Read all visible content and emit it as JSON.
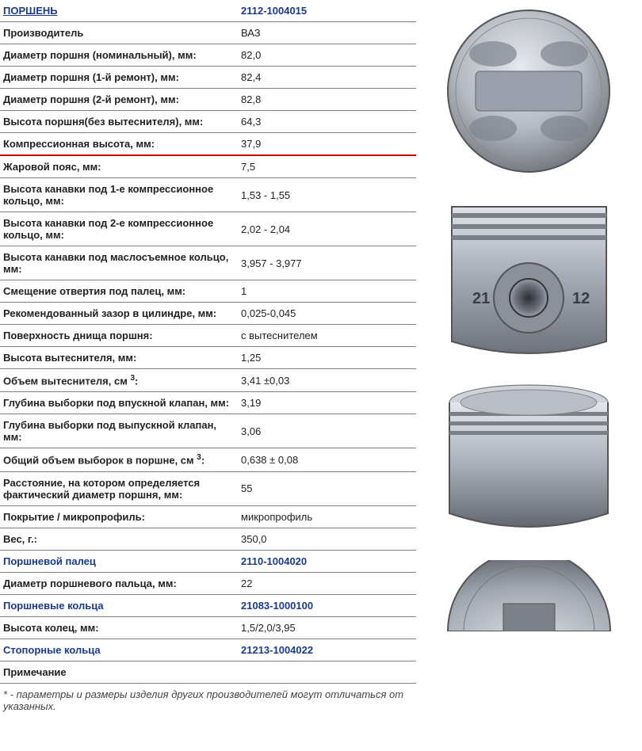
{
  "header": {
    "label": "ПОРШЕНЬ",
    "value": "2112-1004015"
  },
  "rows": [
    {
      "label": "Производитель",
      "value": "ВАЗ",
      "link": false
    },
    {
      "label": "Диаметр поршня (номинальный), мм:",
      "value": "82,0",
      "link": false
    },
    {
      "label": "Диаметр поршня (1-й ремонт), мм:",
      "value": "82,4",
      "link": false
    },
    {
      "label": "Диаметр поршня (2-й ремонт), мм:",
      "value": "82,8",
      "link": false
    },
    {
      "label": "Высота поршня(без вытеснителя), мм:",
      "value": "64,3",
      "link": false
    },
    {
      "label": "Компрессионная высота, мм:",
      "value": "37,9",
      "link": false,
      "redline": true
    },
    {
      "label": "Жаровой пояс, мм:",
      "value": "7,5",
      "link": false
    },
    {
      "label": "Высота канавки под 1-е компрессионное кольцо, мм:",
      "value": "1,53 - 1,55",
      "link": false
    },
    {
      "label": "Высота канавки под 2-е компрессионное кольцо, мм:",
      "value": "2,02 - 2,04",
      "link": false
    },
    {
      "label": "Высота канавки под маслосъемное кольцо, мм:",
      "value": "3,957 - 3,977",
      "link": false
    },
    {
      "label": "Смещение отвертия под палец, мм:",
      "value": "1",
      "link": false
    },
    {
      "label": "Рекомендованный зазор в цилиндре, мм:",
      "value": "0,025-0,045",
      "link": false
    },
    {
      "label": "Поверхность днища поршня:",
      "value": "с вытеснителем",
      "link": false
    },
    {
      "label": "Высота вытеснителя, мм:",
      "value": "1,25",
      "link": false
    },
    {
      "label": "Объем вытеснителя, см",
      "sup": "3",
      "label_after": ":",
      "value": "3,41 ±0,03",
      "link": false
    },
    {
      "label": "Глубина выборки под впускной клапан, мм:",
      "value": "3,19",
      "link": false
    },
    {
      "label": "Глубина выборки под выпускной клапан, мм:",
      "value": "3,06",
      "link": false
    },
    {
      "label": "Общий объем выборок в поршне, см",
      "sup": "3",
      "label_after": ":",
      "value": "0,638 ± 0,08",
      "link": false
    },
    {
      "label": "Расстояние, на котором определяется фактический диаметр поршня, мм:",
      "value": "55",
      "link": false
    },
    {
      "label": "Покрытие / микропрофиль:",
      "value": "микропрофиль",
      "link": false
    },
    {
      "label": "Вес, г.:",
      "value": "350,0",
      "link": false
    },
    {
      "label": "Поршневой палец",
      "value": "2110-1004020",
      "link": true
    },
    {
      "label": "Диаметр поршневого пальца, мм:",
      "value": "22",
      "link": false
    },
    {
      "label": "Поршневые кольца",
      "value": "21083-1000100",
      "link": true
    },
    {
      "label": "Высота колец, мм:",
      "value": "1,5/2,0/3,95",
      "link": false
    },
    {
      "label": "Стопорные кольца",
      "value": "21213-1004022",
      "link": true
    },
    {
      "label": "Примечание",
      "value": "",
      "link": false
    }
  ],
  "footnote": "* - параметры и размеры изделия других производителей могут отличаться от указанных.",
  "images": {
    "alt_top": "piston-top-view",
    "alt_side": "piston-side-pin-view",
    "alt_skirt": "piston-skirt-view",
    "alt_bottom": "piston-bottom-view",
    "marking_left": "21",
    "marking_right": "12"
  },
  "colors": {
    "link": "#1a3b8a",
    "border": "#808080",
    "redline": "#c00000",
    "metal_light": "#c8ccd2",
    "metal_mid": "#9aa0ab",
    "metal_dark": "#5a5f68"
  }
}
